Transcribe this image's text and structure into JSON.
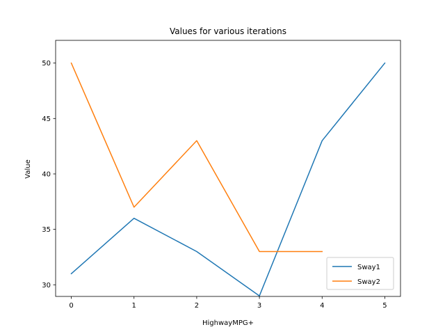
{
  "chart_data": {
    "type": "line",
    "title": "Values for various iterations",
    "xlabel": "HighwayMPG+",
    "ylabel": "Value",
    "xlim": [
      -0.25,
      5.25
    ],
    "ylim": [
      28.95,
      52.05
    ],
    "xticks": [
      0,
      1,
      2,
      3,
      4,
      5
    ],
    "yticks": [
      30,
      35,
      40,
      45,
      50
    ],
    "grid": false,
    "legend_position": "lower-right",
    "series": [
      {
        "name": "Sway1",
        "color": "#1f77b4",
        "x": [
          0,
          1,
          2,
          3,
          4,
          5
        ],
        "values": [
          31,
          36,
          33,
          29,
          43,
          50
        ]
      },
      {
        "name": "Sway2",
        "color": "#ff7f0e",
        "x": [
          0,
          1,
          2,
          3,
          4
        ],
        "values": [
          50,
          37,
          43,
          33,
          33
        ]
      }
    ]
  }
}
